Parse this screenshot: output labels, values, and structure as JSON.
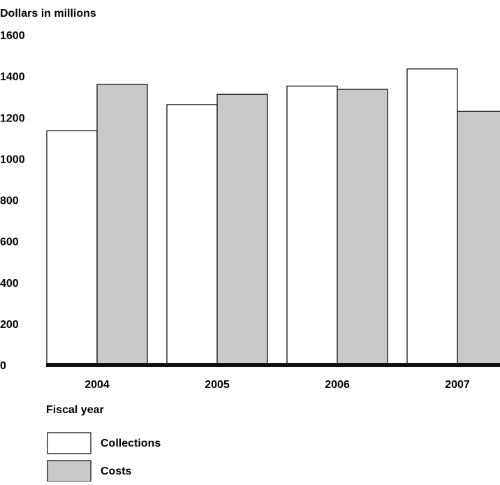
{
  "chart_data": {
    "type": "bar",
    "ylabel": "Dollars in millions",
    "xlabel": "Fiscal year",
    "categories": [
      "2004",
      "2005",
      "2006",
      "2007"
    ],
    "series": [
      {
        "name": "Collections",
        "values": [
          1135,
          1262,
          1352,
          1435
        ],
        "color": "#ffffff"
      },
      {
        "name": "Costs",
        "values": [
          1360,
          1312,
          1336,
          1230
        ],
        "color": "#c8c9cb"
      }
    ],
    "ylim": [
      0,
      1600
    ],
    "yticks": [
      0,
      200,
      400,
      600,
      800,
      1000,
      1200,
      1400,
      1600
    ],
    "grid": false,
    "legend_position": "bottom-left",
    "colors": {
      "outline": "#000000",
      "axis": "#111111"
    }
  }
}
